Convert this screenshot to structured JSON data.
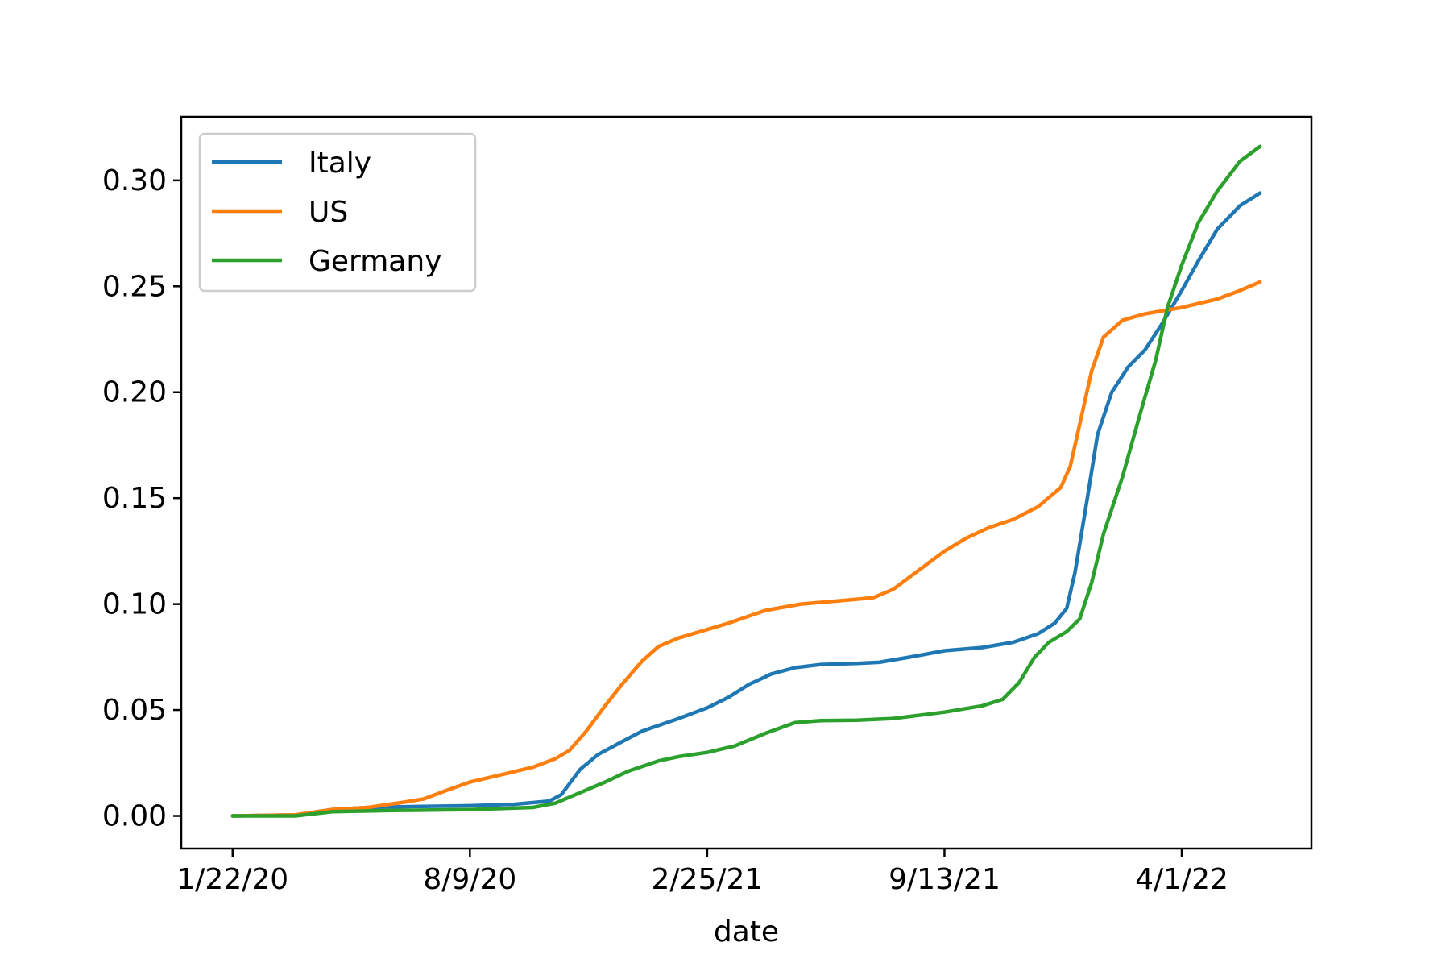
{
  "chart_data": {
    "type": "line",
    "title": "",
    "xlabel": "date",
    "ylabel": "",
    "x_ticks": [
      "1/22/20",
      "8/9/20",
      "2/25/21",
      "9/13/21",
      "4/1/22"
    ],
    "x_range": [
      "2020-01-22",
      "2022-06-06"
    ],
    "ylim": [
      -0.0154,
      0.33
    ],
    "y_ticks": [
      0.0,
      0.05,
      0.1,
      0.15,
      0.2,
      0.25,
      0.3
    ],
    "y_tick_labels": [
      "0.00",
      "0.05",
      "0.10",
      "0.15",
      "0.20",
      "0.25",
      "0.30"
    ],
    "grid": false,
    "legend_position": "upper-left",
    "series": [
      {
        "name": "Italy",
        "color": "#1f77b4",
        "points": [
          [
            "2020-01-22",
            0.0
          ],
          [
            "2020-03-15",
            0.0005
          ],
          [
            "2020-04-15",
            0.003
          ],
          [
            "2020-05-15",
            0.004
          ],
          [
            "2020-07-01",
            0.0045
          ],
          [
            "2020-08-09",
            0.0048
          ],
          [
            "2020-09-15",
            0.0055
          ],
          [
            "2020-10-15",
            0.007
          ],
          [
            "2020-10-25",
            0.01
          ],
          [
            "2020-11-10",
            0.022
          ],
          [
            "2020-11-25",
            0.029
          ],
          [
            "2020-12-15",
            0.035
          ],
          [
            "2021-01-01",
            0.04
          ],
          [
            "2021-02-01",
            0.046
          ],
          [
            "2021-02-25",
            0.051
          ],
          [
            "2021-03-15",
            0.056
          ],
          [
            "2021-04-01",
            0.062
          ],
          [
            "2021-04-20",
            0.067
          ],
          [
            "2021-05-10",
            0.07
          ],
          [
            "2021-06-01",
            0.0715
          ],
          [
            "2021-07-01",
            0.072
          ],
          [
            "2021-07-20",
            0.0725
          ],
          [
            "2021-08-15",
            0.075
          ],
          [
            "2021-09-13",
            0.078
          ],
          [
            "2021-10-15",
            0.0795
          ],
          [
            "2021-11-10",
            0.082
          ],
          [
            "2021-12-01",
            0.086
          ],
          [
            "2021-12-15",
            0.091
          ],
          [
            "2021-12-25",
            0.098
          ],
          [
            "2022-01-01",
            0.115
          ],
          [
            "2022-01-10",
            0.145
          ],
          [
            "2022-01-20",
            0.18
          ],
          [
            "2022-02-01",
            0.2
          ],
          [
            "2022-02-15",
            0.212
          ],
          [
            "2022-03-01",
            0.22
          ],
          [
            "2022-03-15",
            0.232
          ],
          [
            "2022-04-01",
            0.248
          ],
          [
            "2022-04-15",
            0.262
          ],
          [
            "2022-05-01",
            0.277
          ],
          [
            "2022-05-20",
            0.288
          ],
          [
            "2022-06-06",
            0.294
          ]
        ]
      },
      {
        "name": "US",
        "color": "#ff7f0e",
        "points": [
          [
            "2020-01-22",
            0.0
          ],
          [
            "2020-03-15",
            0.0005
          ],
          [
            "2020-04-15",
            0.003
          ],
          [
            "2020-05-15",
            0.004
          ],
          [
            "2020-06-15",
            0.0065
          ],
          [
            "2020-07-01",
            0.008
          ],
          [
            "2020-07-20",
            0.012
          ],
          [
            "2020-08-09",
            0.016
          ],
          [
            "2020-09-01",
            0.019
          ],
          [
            "2020-10-01",
            0.023
          ],
          [
            "2020-10-20",
            0.027
          ],
          [
            "2020-11-01",
            0.031
          ],
          [
            "2020-11-15",
            0.04
          ],
          [
            "2020-12-01",
            0.052
          ],
          [
            "2020-12-15",
            0.062
          ],
          [
            "2021-01-01",
            0.073
          ],
          [
            "2021-01-15",
            0.08
          ],
          [
            "2021-02-01",
            0.084
          ],
          [
            "2021-02-25",
            0.088
          ],
          [
            "2021-03-15",
            0.091
          ],
          [
            "2021-04-15",
            0.097
          ],
          [
            "2021-05-15",
            0.1
          ],
          [
            "2021-06-15",
            0.1015
          ],
          [
            "2021-07-15",
            0.103
          ],
          [
            "2021-08-01",
            0.107
          ],
          [
            "2021-08-20",
            0.115
          ],
          [
            "2021-09-13",
            0.125
          ],
          [
            "2021-10-01",
            0.131
          ],
          [
            "2021-10-20",
            0.136
          ],
          [
            "2021-11-10",
            0.14
          ],
          [
            "2021-12-01",
            0.146
          ],
          [
            "2021-12-20",
            0.155
          ],
          [
            "2021-12-28",
            0.165
          ],
          [
            "2022-01-05",
            0.185
          ],
          [
            "2022-01-15",
            0.21
          ],
          [
            "2022-01-25",
            0.226
          ],
          [
            "2022-02-10",
            0.234
          ],
          [
            "2022-03-01",
            0.237
          ],
          [
            "2022-04-01",
            0.24
          ],
          [
            "2022-05-01",
            0.244
          ],
          [
            "2022-05-20",
            0.248
          ],
          [
            "2022-06-06",
            0.252
          ]
        ]
      },
      {
        "name": "Germany",
        "color": "#2ca02c",
        "points": [
          [
            "2020-01-22",
            0.0
          ],
          [
            "2020-03-15",
            0.0
          ],
          [
            "2020-04-15",
            0.002
          ],
          [
            "2020-06-01",
            0.0025
          ],
          [
            "2020-08-09",
            0.003
          ],
          [
            "2020-10-01",
            0.004
          ],
          [
            "2020-10-20",
            0.006
          ],
          [
            "2020-11-10",
            0.011
          ],
          [
            "2020-12-01",
            0.016
          ],
          [
            "2020-12-20",
            0.021
          ],
          [
            "2021-01-15",
            0.026
          ],
          [
            "2021-02-01",
            0.028
          ],
          [
            "2021-02-25",
            0.03
          ],
          [
            "2021-03-20",
            0.033
          ],
          [
            "2021-04-15",
            0.039
          ],
          [
            "2021-05-10",
            0.044
          ],
          [
            "2021-06-01",
            0.045
          ],
          [
            "2021-07-01",
            0.0452
          ],
          [
            "2021-08-01",
            0.046
          ],
          [
            "2021-09-13",
            0.049
          ],
          [
            "2021-10-15",
            0.052
          ],
          [
            "2021-11-01",
            0.055
          ],
          [
            "2021-11-15",
            0.063
          ],
          [
            "2021-11-28",
            0.075
          ],
          [
            "2021-12-10",
            0.082
          ],
          [
            "2021-12-25",
            0.087
          ],
          [
            "2022-01-05",
            0.093
          ],
          [
            "2022-01-15",
            0.11
          ],
          [
            "2022-01-25",
            0.133
          ],
          [
            "2022-02-10",
            0.16
          ],
          [
            "2022-02-25",
            0.19
          ],
          [
            "2022-03-10",
            0.215
          ],
          [
            "2022-03-20",
            0.24
          ],
          [
            "2022-04-01",
            0.26
          ],
          [
            "2022-04-15",
            0.28
          ],
          [
            "2022-05-01",
            0.295
          ],
          [
            "2022-05-20",
            0.309
          ],
          [
            "2022-06-06",
            0.316
          ]
        ]
      }
    ]
  }
}
